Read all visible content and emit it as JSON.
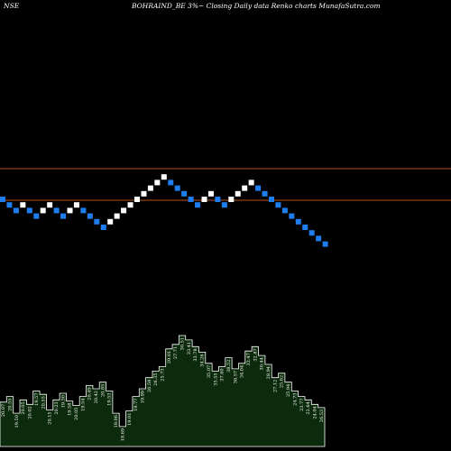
{
  "header": {
    "exchange": "NSE",
    "title": "BOHRAIND_BE 3%~  Closing Daily data  Renko  charts MunafaSutra.com"
  },
  "colors": {
    "background": "#000000",
    "up_brick": "#ffffff",
    "down_brick": "#1e7ef0",
    "reference_line": "#b4501e",
    "volume_fill": "#0c2a0c",
    "volume_stroke": "#ffffff"
  },
  "chart_data": {
    "type": "renko",
    "brick_colors": [
      "down",
      "down",
      "down",
      "up",
      "down",
      "down",
      "up",
      "up",
      "down",
      "down",
      "up",
      "up",
      "down",
      "down",
      "down",
      "down",
      "up",
      "up",
      "up",
      "up",
      "up",
      "up",
      "up",
      "up",
      "up",
      "down",
      "down",
      "down",
      "down",
      "down",
      "up",
      "up",
      "down",
      "down",
      "up",
      "up",
      "up",
      "up",
      "down",
      "down",
      "down",
      "down",
      "down",
      "down",
      "down",
      "down",
      "down",
      "down",
      "down"
    ],
    "brick_levels": [
      0,
      -1,
      -2,
      -1,
      -2,
      -3,
      -2,
      -1,
      -2,
      -3,
      -2,
      -1,
      -2,
      -3,
      -4,
      -5,
      -4,
      -3,
      -2,
      -1,
      0,
      1,
      2,
      3,
      4,
      3,
      2,
      1,
      0,
      -1,
      0,
      1,
      0,
      -1,
      0,
      1,
      2,
      3,
      2,
      1,
      0,
      -1,
      -2,
      -3,
      -4,
      -5,
      -6,
      -7,
      -8
    ],
    "reference_lines": [
      "upper",
      "lower"
    ],
    "volume": {
      "values": [
        0.4,
        0.45,
        0.3,
        0.42,
        0.38,
        0.5,
        0.47,
        0.33,
        0.42,
        0.48,
        0.41,
        0.37,
        0.45,
        0.55,
        0.52,
        0.58,
        0.5,
        0.3,
        0.18,
        0.32,
        0.45,
        0.52,
        0.62,
        0.68,
        0.72,
        0.88,
        0.92,
        1.0,
        0.96,
        0.9,
        0.85,
        0.75,
        0.68,
        0.72,
        0.8,
        0.7,
        0.75,
        0.86,
        0.9,
        0.82,
        0.74,
        0.62,
        0.66,
        0.58,
        0.5,
        0.45,
        0.42,
        0.38,
        0.35
      ],
      "labels": [
        "20.07",
        "20.55",
        "19.50",
        "20.05",
        "20.02",
        "19.57",
        "20.55",
        "20.15",
        "20.23",
        "19.50",
        "19.58",
        "20.05",
        "19.54",
        "20.49",
        "20.42",
        "20.85",
        "19.53",
        "19.06",
        "18.69",
        "19.01",
        "19.77",
        "19.99",
        "26.58",
        "26.35",
        "25.73",
        "29.01",
        "27.71",
        "30.51",
        "33.41",
        "33.78",
        "34.26",
        "35.07",
        "35.55",
        "37.60",
        "38.52",
        "36.57",
        "34.04",
        "33.47",
        "32.87",
        "30.44",
        "28.94",
        "27.12",
        "25.62",
        "25.94",
        "24.73",
        "23.77",
        "22.64",
        "24.04",
        "26.53"
      ]
    }
  }
}
